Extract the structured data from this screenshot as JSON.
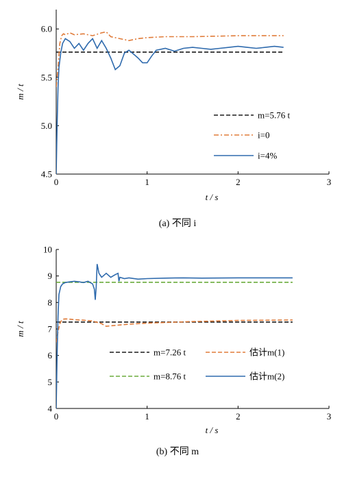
{
  "colors": {
    "black": "#1a1a1a",
    "orange": "#e07b39",
    "blue": "#2e6aad",
    "green": "#6aab3b"
  },
  "chart_data": [
    {
      "type": "line",
      "caption": "(a)  不同 i",
      "xlabel": "t / s",
      "ylabel": "m / t",
      "xlim": [
        0,
        3
      ],
      "ylim": [
        4.5,
        6.2
      ],
      "xticks": [
        "0",
        "1",
        "2",
        "3"
      ],
      "yticks": [
        "4.5",
        "5.0",
        "5.5",
        "6.0"
      ],
      "legend_position": "center-right",
      "series": [
        {
          "name": "m=5.76 t",
          "style": "dashed",
          "color": "#1a1a1a",
          "x": [
            0.0,
            2.5
          ],
          "y": [
            5.76,
            5.76
          ]
        },
        {
          "name": "i=0",
          "style": "dashdot",
          "color": "#e07b39",
          "x": [
            0.0,
            0.02,
            0.04,
            0.06,
            0.08,
            0.1,
            0.15,
            0.2,
            0.3,
            0.4,
            0.5,
            0.55,
            0.6,
            0.7,
            0.8,
            0.9,
            1.0,
            1.2,
            1.5,
            2.0,
            2.5
          ],
          "y": [
            5.4,
            5.6,
            5.85,
            5.93,
            5.95,
            5.94,
            5.96,
            5.94,
            5.95,
            5.93,
            5.96,
            5.97,
            5.92,
            5.9,
            5.88,
            5.9,
            5.91,
            5.92,
            5.92,
            5.93,
            5.93
          ]
        },
        {
          "name": "i=4%",
          "style": "solid",
          "color": "#2e6aad",
          "x": [
            0.0,
            0.01,
            0.02,
            0.03,
            0.05,
            0.07,
            0.1,
            0.15,
            0.2,
            0.25,
            0.3,
            0.35,
            0.4,
            0.45,
            0.5,
            0.55,
            0.6,
            0.65,
            0.7,
            0.75,
            0.8,
            0.85,
            0.9,
            0.95,
            1.0,
            1.05,
            1.1,
            1.2,
            1.3,
            1.4,
            1.5,
            1.6,
            1.7,
            1.8,
            1.9,
            2.0,
            2.1,
            2.2,
            2.3,
            2.4,
            2.5
          ],
          "y": [
            4.5,
            5.0,
            5.4,
            5.6,
            5.75,
            5.85,
            5.9,
            5.87,
            5.8,
            5.85,
            5.78,
            5.85,
            5.9,
            5.8,
            5.88,
            5.8,
            5.7,
            5.58,
            5.62,
            5.75,
            5.78,
            5.74,
            5.7,
            5.65,
            5.65,
            5.72,
            5.78,
            5.8,
            5.77,
            5.8,
            5.81,
            5.8,
            5.79,
            5.8,
            5.81,
            5.82,
            5.81,
            5.8,
            5.81,
            5.82,
            5.81
          ]
        }
      ]
    },
    {
      "type": "line",
      "caption": "(b)  不同 m",
      "xlabel": "t / s",
      "ylabel": "m / t",
      "xlim": [
        0,
        3
      ],
      "ylim": [
        4,
        10
      ],
      "xticks": [
        "0",
        "1",
        "2",
        "3"
      ],
      "yticks": [
        "4",
        "5",
        "6",
        "7",
        "8",
        "9",
        "10"
      ],
      "legend_position": "bottom",
      "series": [
        {
          "name": "m=7.26 t",
          "style": "dashed",
          "color": "#1a1a1a",
          "x": [
            0.0,
            2.6
          ],
          "y": [
            7.26,
            7.26
          ]
        },
        {
          "name": "m=8.76 t",
          "style": "dashed",
          "color": "#6aab3b",
          "x": [
            0.0,
            2.6
          ],
          "y": [
            8.76,
            8.76
          ]
        },
        {
          "name": "估计m(1)",
          "style": "dashed",
          "color": "#e07b39",
          "x": [
            0.0,
            0.02,
            0.04,
            0.06,
            0.08,
            0.1,
            0.15,
            0.2,
            0.3,
            0.4,
            0.5,
            0.55,
            0.6,
            0.7,
            0.8,
            1.0,
            1.5,
            2.0,
            2.6
          ],
          "y": [
            6.5,
            6.9,
            7.2,
            7.33,
            7.37,
            7.38,
            7.37,
            7.35,
            7.33,
            7.3,
            7.2,
            7.1,
            7.12,
            7.15,
            7.18,
            7.22,
            7.28,
            7.32,
            7.34
          ]
        },
        {
          "name": "估计m(2)",
          "style": "solid",
          "color": "#2e6aad",
          "x": [
            0.0,
            0.01,
            0.02,
            0.03,
            0.05,
            0.07,
            0.1,
            0.15,
            0.2,
            0.25,
            0.3,
            0.35,
            0.4,
            0.42,
            0.43,
            0.44,
            0.45,
            0.47,
            0.5,
            0.55,
            0.6,
            0.65,
            0.68,
            0.69,
            0.7,
            0.75,
            0.8,
            0.9,
            1.0,
            1.2,
            1.4,
            1.6,
            2.0,
            2.3,
            2.6
          ],
          "y": [
            4.0,
            6.0,
            7.5,
            8.3,
            8.6,
            8.7,
            8.75,
            8.78,
            8.8,
            8.78,
            8.75,
            8.8,
            8.7,
            8.5,
            8.1,
            8.6,
            9.45,
            9.1,
            8.95,
            9.1,
            8.95,
            9.05,
            9.1,
            8.8,
            8.95,
            8.9,
            8.93,
            8.88,
            8.9,
            8.92,
            8.93,
            8.92,
            8.93,
            8.93,
            8.93
          ]
        }
      ]
    }
  ]
}
